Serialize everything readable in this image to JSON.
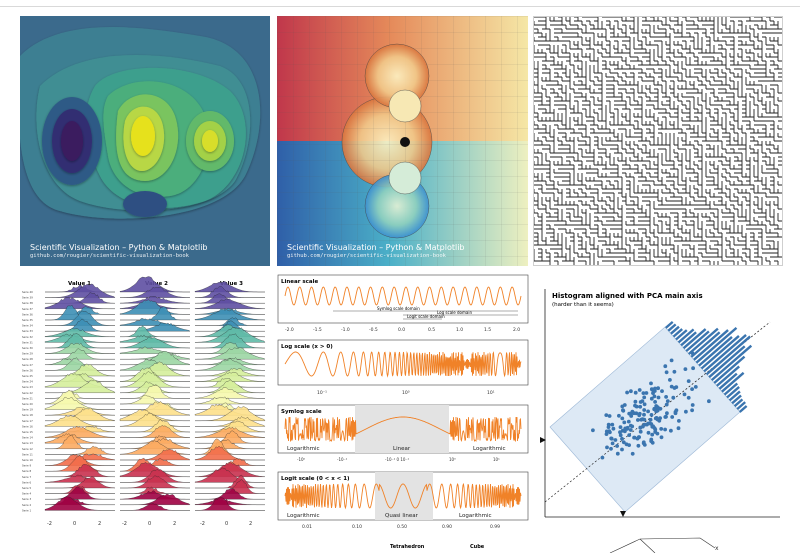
{
  "watermark": {
    "title": "Scientific Visualization – Python & Matplotlib",
    "url": "github.com/rougier/scientific-visualization-book"
  },
  "ridgeline": {
    "column_titles": [
      "Value 1",
      "Value 2",
      "Value 3"
    ],
    "xticks": [
      "-2",
      "0",
      "2"
    ],
    "series_count": 40
  },
  "scales": {
    "panels": [
      {
        "title": "Linear scale",
        "ticks": [
          "-2.0",
          "-1.5",
          "-1.0",
          "-0.5",
          "0.0",
          "0.5",
          "1.0",
          "1.5",
          "2.0"
        ],
        "domains": [
          "Symlog scale domain",
          "Log scale domain",
          "Logit scale domain"
        ]
      },
      {
        "title": "Log scale (x > 0)",
        "ticks": [
          "10⁻¹",
          "10⁰",
          "10¹"
        ]
      },
      {
        "title": "Symlog scale",
        "ticks": [
          "-10⁰",
          "-10⁻¹",
          "-10⁻¹ 0 10⁻¹",
          "10⁰",
          "10¹"
        ],
        "regions": [
          "Logarithmic",
          "Linear",
          "Logarithmic"
        ]
      },
      {
        "title": "Logit scale (0 < x < 1)",
        "ticks": [
          "0.01",
          "0.10",
          "0.50",
          "0.90",
          "0.99"
        ],
        "regions": [
          "Logarithmic",
          "Quasi linear",
          "Logarithmic"
        ]
      }
    ]
  },
  "pca": {
    "title": "Histogram aligned with PCA main axis",
    "subtitle": "(harder than it seems)",
    "accent": "#3b75af"
  },
  "footer": {
    "labels": [
      "Tetrahedron",
      "Cube"
    ]
  }
}
